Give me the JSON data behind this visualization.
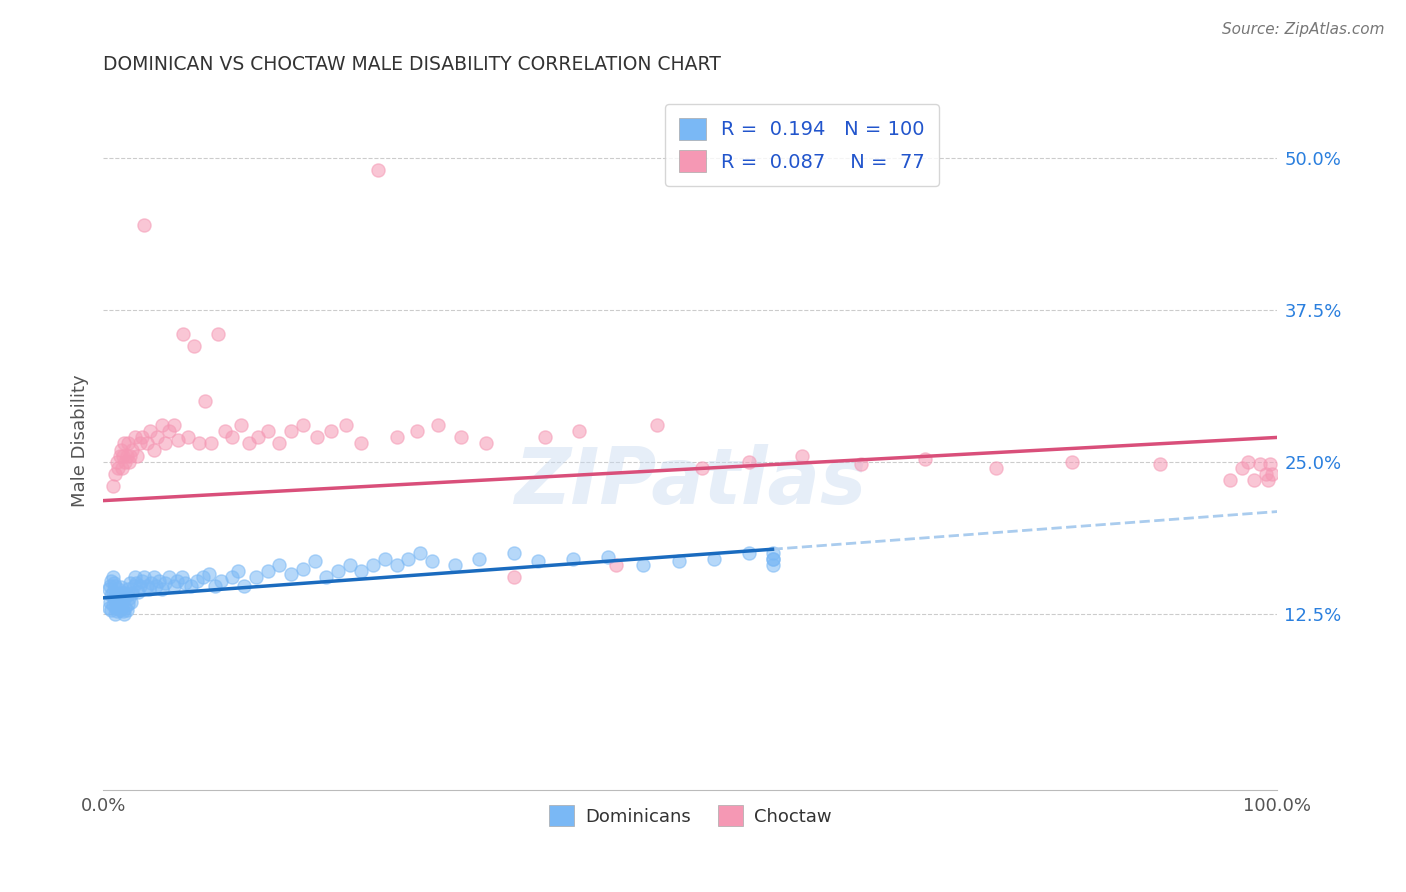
{
  "title": "DOMINICAN VS CHOCTAW MALE DISABILITY CORRELATION CHART",
  "source": "Source: ZipAtlas.com",
  "ylabel": "Male Disability",
  "xlim": [
    0.0,
    1.0
  ],
  "ylim": [
    -0.02,
    0.555
  ],
  "ytick_positions": [
    0.125,
    0.25,
    0.375,
    0.5
  ],
  "yticklabels": [
    "12.5%",
    "25.0%",
    "37.5%",
    "50.0%"
  ],
  "dominican_color": "#7ab8f5",
  "choctaw_color": "#f598b4",
  "dominican_line_color": "#1a6bbf",
  "choctaw_line_color": "#d94f7a",
  "dashed_line_color": "#aaccee",
  "R_dominican": 0.194,
  "N_dominican": 100,
  "R_choctaw": 0.087,
  "N_choctaw": 77,
  "watermark": "ZIPatlas",
  "dom_line_x0": 0.0,
  "dom_line_y0": 0.138,
  "dom_line_x1": 0.57,
  "dom_line_y1": 0.178,
  "cho_line_x0": 0.0,
  "cho_line_y0": 0.218,
  "cho_line_x1": 1.0,
  "cho_line_y1": 0.27,
  "dash_line_x0": 0.57,
  "dash_line_y0": 0.178,
  "dash_line_x1": 1.0,
  "dash_line_y1": 0.209,
  "dominican_x": [
    0.005,
    0.005,
    0.006,
    0.006,
    0.007,
    0.007,
    0.007,
    0.008,
    0.008,
    0.008,
    0.009,
    0.009,
    0.01,
    0.01,
    0.01,
    0.011,
    0.011,
    0.012,
    0.012,
    0.013,
    0.013,
    0.014,
    0.014,
    0.015,
    0.015,
    0.016,
    0.016,
    0.017,
    0.017,
    0.018,
    0.018,
    0.019,
    0.019,
    0.02,
    0.02,
    0.021,
    0.021,
    0.022,
    0.023,
    0.024,
    0.025,
    0.026,
    0.027,
    0.028,
    0.03,
    0.031,
    0.033,
    0.035,
    0.037,
    0.039,
    0.041,
    0.043,
    0.045,
    0.048,
    0.05,
    0.053,
    0.056,
    0.06,
    0.063,
    0.067,
    0.07,
    0.075,
    0.08,
    0.085,
    0.09,
    0.095,
    0.1,
    0.11,
    0.115,
    0.12,
    0.13,
    0.14,
    0.15,
    0.16,
    0.17,
    0.18,
    0.19,
    0.2,
    0.21,
    0.22,
    0.23,
    0.24,
    0.25,
    0.26,
    0.27,
    0.28,
    0.3,
    0.32,
    0.35,
    0.37,
    0.4,
    0.43,
    0.46,
    0.49,
    0.52,
    0.55,
    0.57,
    0.57,
    0.57,
    0.57
  ],
  "dominican_y": [
    0.13,
    0.145,
    0.135,
    0.148,
    0.128,
    0.14,
    0.152,
    0.132,
    0.143,
    0.155,
    0.138,
    0.15,
    0.125,
    0.136,
    0.148,
    0.13,
    0.142,
    0.127,
    0.139,
    0.133,
    0.145,
    0.128,
    0.14,
    0.135,
    0.147,
    0.13,
    0.142,
    0.127,
    0.139,
    0.125,
    0.137,
    0.13,
    0.142,
    0.128,
    0.14,
    0.133,
    0.145,
    0.138,
    0.15,
    0.135,
    0.142,
    0.148,
    0.155,
    0.15,
    0.143,
    0.148,
    0.152,
    0.155,
    0.148,
    0.145,
    0.15,
    0.155,
    0.148,
    0.152,
    0.145,
    0.15,
    0.155,
    0.148,
    0.152,
    0.155,
    0.15,
    0.148,
    0.152,
    0.155,
    0.158,
    0.148,
    0.152,
    0.155,
    0.16,
    0.148,
    0.155,
    0.16,
    0.165,
    0.158,
    0.162,
    0.168,
    0.155,
    0.16,
    0.165,
    0.16,
    0.165,
    0.17,
    0.165,
    0.17,
    0.175,
    0.168,
    0.165,
    0.17,
    0.175,
    0.168,
    0.17,
    0.172,
    0.165,
    0.168,
    0.17,
    0.175,
    0.17,
    0.175,
    0.165,
    0.17
  ],
  "choctaw_x": [
    0.008,
    0.01,
    0.012,
    0.013,
    0.014,
    0.015,
    0.016,
    0.017,
    0.018,
    0.019,
    0.02,
    0.021,
    0.022,
    0.023,
    0.025,
    0.027,
    0.029,
    0.031,
    0.033,
    0.035,
    0.037,
    0.04,
    0.043,
    0.046,
    0.05,
    0.053,
    0.056,
    0.06,
    0.064,
    0.068,
    0.072,
    0.077,
    0.082,
    0.087,
    0.092,
    0.098,
    0.104,
    0.11,
    0.117,
    0.124,
    0.132,
    0.14,
    0.15,
    0.16,
    0.17,
    0.182,
    0.194,
    0.207,
    0.22,
    0.234,
    0.25,
    0.267,
    0.285,
    0.305,
    0.326,
    0.35,
    0.376,
    0.405,
    0.437,
    0.472,
    0.51,
    0.55,
    0.595,
    0.645,
    0.7,
    0.76,
    0.825,
    0.9,
    0.96,
    0.97,
    0.975,
    0.98,
    0.985,
    0.99,
    0.992,
    0.994,
    0.995
  ],
  "choctaw_y": [
    0.23,
    0.24,
    0.25,
    0.245,
    0.255,
    0.26,
    0.245,
    0.255,
    0.265,
    0.25,
    0.255,
    0.265,
    0.25,
    0.255,
    0.26,
    0.27,
    0.255,
    0.265,
    0.27,
    0.445,
    0.265,
    0.275,
    0.26,
    0.27,
    0.28,
    0.265,
    0.275,
    0.28,
    0.268,
    0.355,
    0.27,
    0.345,
    0.265,
    0.3,
    0.265,
    0.355,
    0.275,
    0.27,
    0.28,
    0.265,
    0.27,
    0.275,
    0.265,
    0.275,
    0.28,
    0.27,
    0.275,
    0.28,
    0.265,
    0.49,
    0.27,
    0.275,
    0.28,
    0.27,
    0.265,
    0.155,
    0.27,
    0.275,
    0.165,
    0.28,
    0.245,
    0.25,
    0.255,
    0.248,
    0.252,
    0.245,
    0.25,
    0.248,
    0.235,
    0.245,
    0.25,
    0.235,
    0.248,
    0.24,
    0.235,
    0.248,
    0.24
  ]
}
